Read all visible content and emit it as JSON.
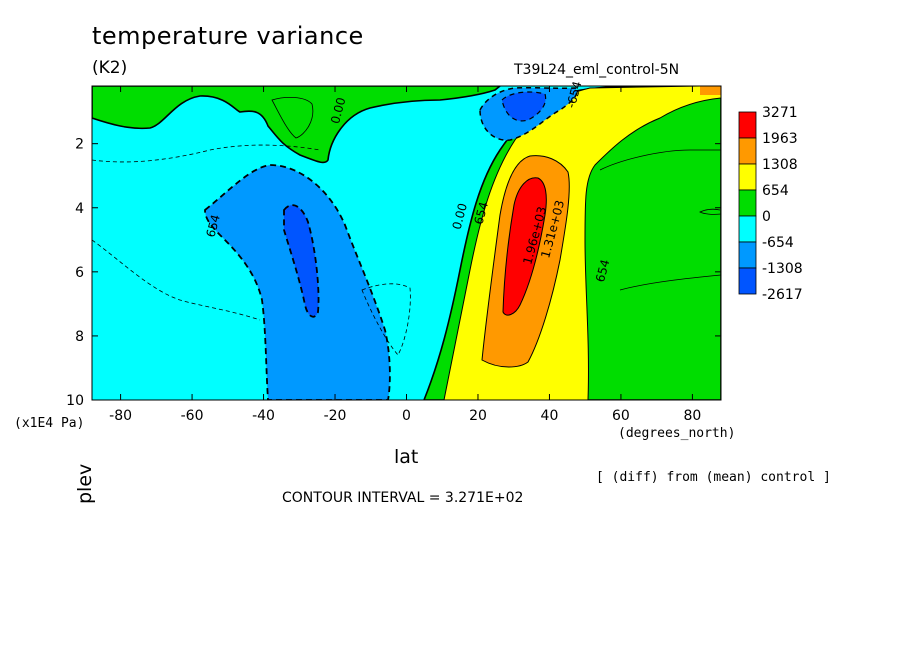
{
  "title": "temperature variance",
  "units": "(K2)",
  "run_label": "T39L24_eml_control-5N",
  "diff_note": "[ (diff) from (mean) control ]",
  "contour_interval": "CONTOUR INTERVAL = 3.271E+02",
  "chart_data": {
    "type": "heatmap",
    "xlabel": "lat",
    "x_unit": "(degrees_north)",
    "ylabel": "plev",
    "y_unit": "(x1E4 Pa)",
    "xlim": [
      -88,
      88
    ],
    "ylim": [
      10,
      0.2
    ],
    "x_ticks": [
      "-80",
      "-60",
      "-40",
      "-20",
      "0",
      "20",
      "40",
      "60",
      "80"
    ],
    "x_tick_values": [
      -80,
      -60,
      -40,
      -20,
      0,
      20,
      40,
      60,
      80
    ],
    "y_ticks": [
      "2",
      "4",
      "6",
      "8",
      "10"
    ],
    "y_tick_values": [
      2,
      4,
      6,
      8,
      10
    ],
    "colorbar": {
      "labels": [
        "3271",
        "1963",
        "1308",
        "654",
        "0",
        "-654",
        "-1308",
        "-2617"
      ],
      "colors": [
        "#ff0000",
        "#ff9900",
        "#ffff00",
        "#00dd00",
        "#00ffff",
        "#0099ff",
        "#0055ff"
      ]
    },
    "levels": [
      -2617,
      -1308,
      -654,
      0,
      654,
      1308,
      1963,
      3271
    ],
    "contour_labels": [
      {
        "text": "0.00",
        "lat": -18,
        "plev": 1.0
      },
      {
        "text": "-654",
        "lat": 48,
        "plev": 0.5
      },
      {
        "text": "654",
        "lat": -53,
        "plev": 4.6
      },
      {
        "text": "0.00",
        "lat": 16,
        "plev": 4.3
      },
      {
        "text": "654",
        "lat": 22,
        "plev": 4.2
      },
      {
        "text": "1.96e+03",
        "lat": 37,
        "plev": 4.9
      },
      {
        "text": "1.31e+03",
        "lat": 42,
        "plev": 4.7
      },
      {
        "text": "654",
        "lat": 56,
        "plev": 6.0
      }
    ]
  }
}
